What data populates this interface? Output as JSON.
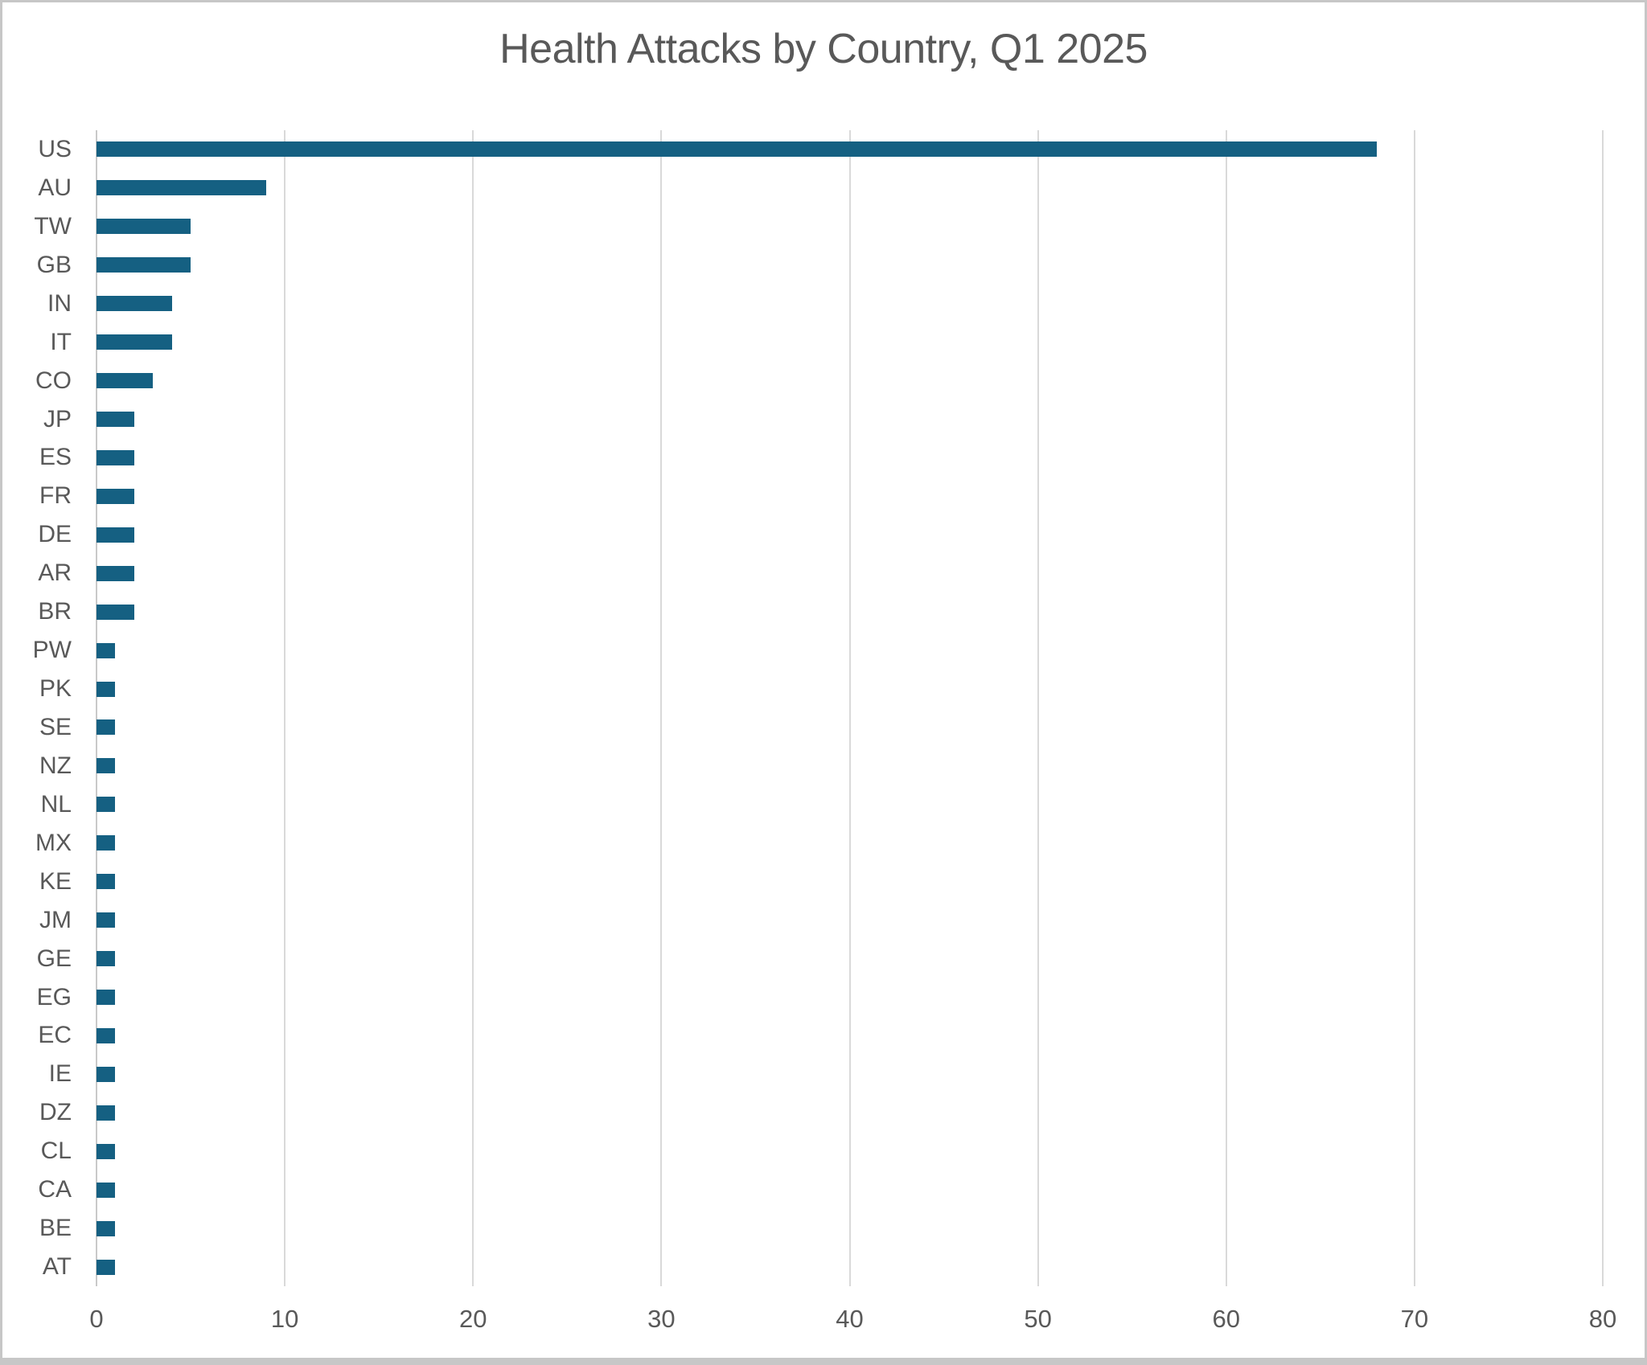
{
  "chart_data": {
    "type": "bar",
    "orientation": "horizontal",
    "title": "Health Attacks by Country, Q1 2025",
    "categories": [
      "US",
      "AU",
      "TW",
      "GB",
      "IN",
      "IT",
      "CO",
      "JP",
      "ES",
      "FR",
      "DE",
      "AR",
      "BR",
      "PW",
      "PK",
      "SE",
      "NZ",
      "NL",
      "MX",
      "KE",
      "JM",
      "GE",
      "EG",
      "EC",
      "IE",
      "DZ",
      "CL",
      "CA",
      "BE",
      "AT"
    ],
    "values": [
      68,
      9,
      5,
      5,
      4,
      4,
      3,
      2,
      2,
      2,
      2,
      2,
      2,
      1,
      1,
      1,
      1,
      1,
      1,
      1,
      1,
      1,
      1,
      1,
      1,
      1,
      1,
      1,
      1,
      1
    ],
    "xlabel": "",
    "ylabel": "",
    "xlim": [
      0,
      80
    ],
    "x_ticks": [
      0,
      10,
      20,
      30,
      40,
      50,
      60,
      70,
      80
    ],
    "grid": true,
    "legend": false,
    "colors": {
      "bar": "#156082",
      "title_text": "#595959",
      "axis_text": "#595959",
      "gridline": "#d9d9d9",
      "axis_line": "#c9c9c9",
      "frame": "#c7c7c7",
      "background": "#ffffff"
    }
  }
}
